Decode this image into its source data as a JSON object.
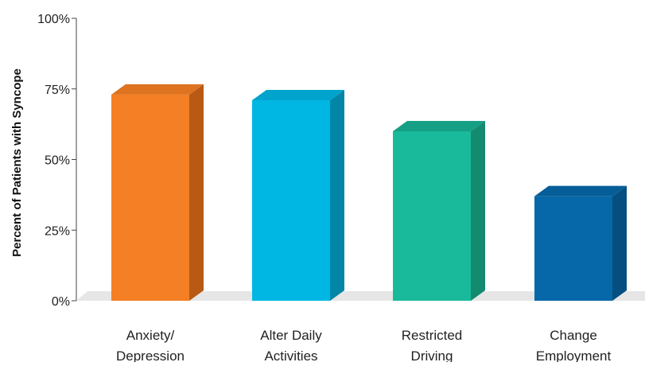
{
  "chart_data": {
    "type": "bar",
    "title": "",
    "xlabel": "",
    "ylabel": "Percent of Patients with Syncope",
    "ylim": [
      0,
      100
    ],
    "y_ticks": [
      {
        "value": 0,
        "label": "0%"
      },
      {
        "value": 25,
        "label": "25%"
      },
      {
        "value": 50,
        "label": "50%"
      },
      {
        "value": 75,
        "label": "75%"
      },
      {
        "value": 100,
        "label": "100%"
      }
    ],
    "grid": false,
    "legend": "none",
    "style": "3d-bars",
    "categories": [
      {
        "label_lines": [
          "Anxiety/",
          "Depression"
        ],
        "value": 73,
        "color": "#f47f24",
        "side_color": "#b85a13",
        "top_color": "#de7320"
      },
      {
        "label_lines": [
          "Alter Daily",
          "Activities"
        ],
        "value": 71,
        "color": "#00b6e2",
        "side_color": "#0186a7",
        "top_color": "#00a3cc"
      },
      {
        "label_lines": [
          "Restricted",
          "Driving"
        ],
        "value": 60,
        "color": "#19b99c",
        "side_color": "#148a6f",
        "top_color": "#159f84"
      },
      {
        "label_lines": [
          "Change",
          "Employment"
        ],
        "value": 37,
        "color": "#0668a8",
        "side_color": "#044f7f",
        "top_color": "#055e97"
      }
    ]
  }
}
